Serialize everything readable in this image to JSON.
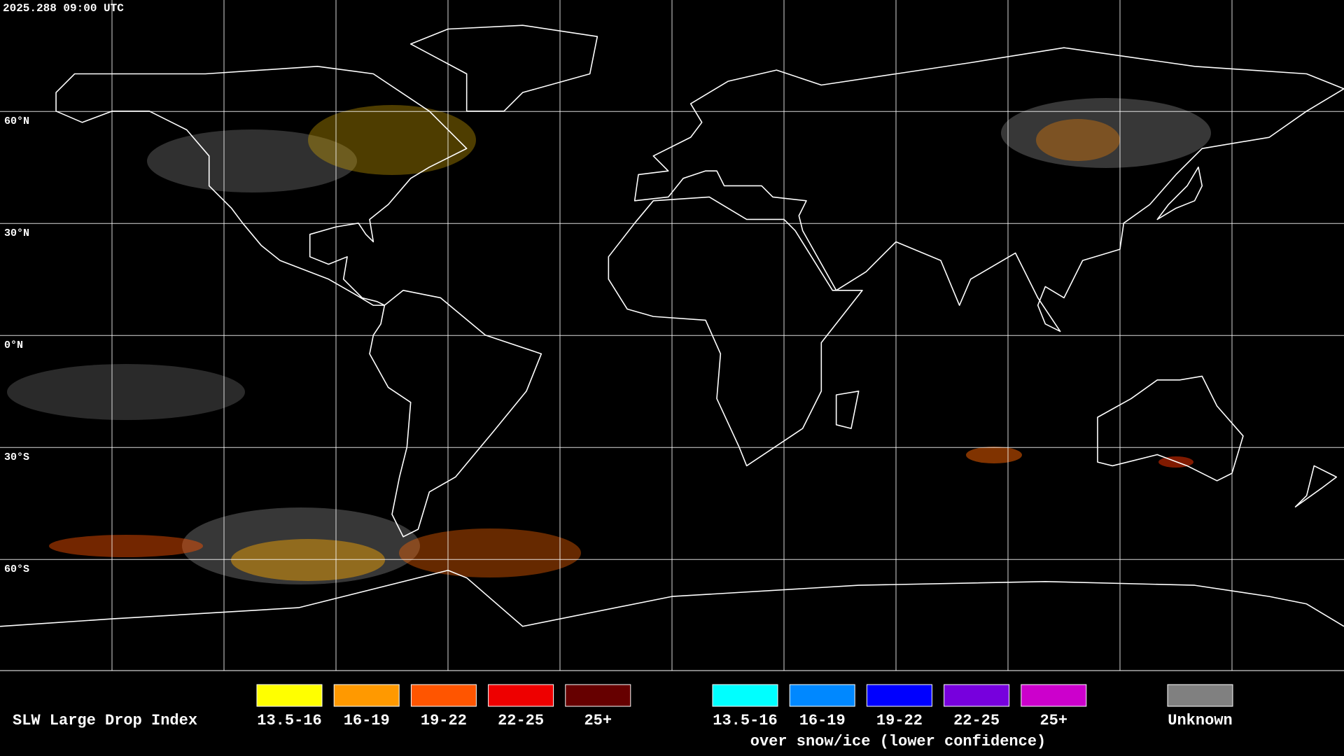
{
  "timestamp": "2025.288 09:00 UTC",
  "grid_labels": [
    "60°N",
    "30°N",
    "0°N",
    "30°S",
    "60°S"
  ],
  "legend": {
    "title": "SLW Large Drop Index",
    "items": [
      {
        "label": "13.5-16",
        "color": "#ffff00"
      },
      {
        "label": "16-19",
        "color": "#ff9900"
      },
      {
        "label": "19-22",
        "color": "#ff5500"
      },
      {
        "label": "22-25",
        "color": "#ee0000"
      },
      {
        "label": "25+",
        "color": "#660000"
      }
    ],
    "snow_items": [
      {
        "label": "13.5-16",
        "color": "#00ffff"
      },
      {
        "label": "16-19",
        "color": "#0088ff"
      },
      {
        "label": "19-22",
        "color": "#0000ff"
      },
      {
        "label": "22-25",
        "color": "#7700dd"
      },
      {
        "label": "25+",
        "color": "#cc00cc"
      }
    ],
    "snow_caption": "over snow/ice (lower confidence)",
    "unknown": {
      "label": "Unknown",
      "color": "#808080"
    }
  }
}
